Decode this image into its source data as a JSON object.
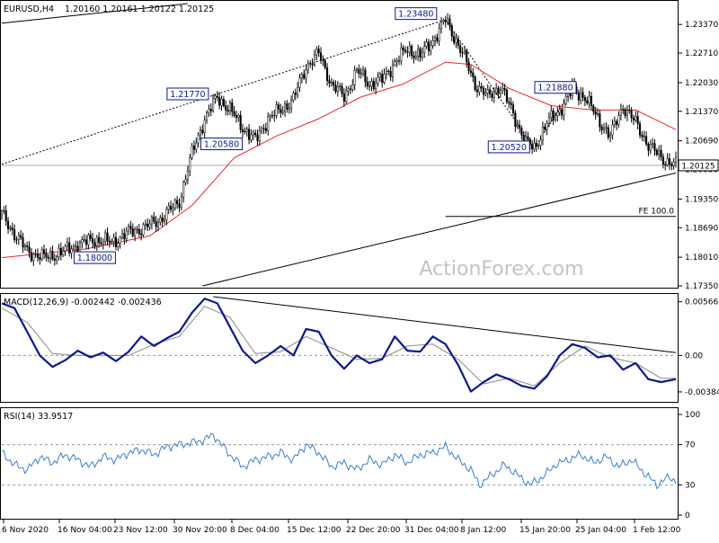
{
  "header": {
    "symbol": "EURUSD,H4",
    "ohlc": "1.20160 1.20161 1.20122 1.20125"
  },
  "watermark": "ActionForex.com",
  "colors": {
    "candle": "#000000",
    "ma": "#e8282b",
    "macd": "#0a1a8c",
    "signal": "#8a8a8a",
    "rsi": "#3a7fcf",
    "grid": "#9a9a9a",
    "border": "#000000"
  },
  "chart_data": [
    {
      "type": "candlestick",
      "panel": "price",
      "ylim": [
        1.1735,
        1.2385
      ],
      "y_ticks": [
        "1.23370",
        "1.22710",
        "1.22030",
        "1.21370",
        "1.20690",
        "1.20030",
        "1.19350",
        "1.18690",
        "1.18010",
        "1.17350"
      ],
      "x_ticks": [
        "6 Nov 2020",
        "16 Nov 04:00",
        "23 Nov 12:00",
        "30 Nov 20:00",
        "8 Dec 04:00",
        "15 Dec 12:00",
        "22 Dec 20:00",
        "31 Dec 04:00",
        "8 Jan 12:00",
        "15 Jan 20:00",
        "25 Jan 04:00",
        "1 Feb 12:00"
      ],
      "x_count": 320,
      "close_path": [
        [
          0,
          1.19
        ],
        [
          6,
          1.1855
        ],
        [
          12,
          1.1815
        ],
        [
          20,
          1.18
        ],
        [
          28,
          1.1812
        ],
        [
          36,
          1.183
        ],
        [
          44,
          1.1842
        ],
        [
          52,
          1.1835
        ],
        [
          60,
          1.1858
        ],
        [
          68,
          1.187
        ],
        [
          76,
          1.1892
        ],
        [
          84,
          1.193
        ],
        [
          90,
          1.204
        ],
        [
          96,
          1.212
        ],
        [
          102,
          1.217
        ],
        [
          108,
          1.214
        ],
        [
          114,
          1.21
        ],
        [
          120,
          1.207
        ],
        [
          126,
          1.212
        ],
        [
          132,
          1.214
        ],
        [
          138,
          1.2165
        ],
        [
          144,
          1.224
        ],
        [
          150,
          1.227
        ],
        [
          156,
          1.22
        ],
        [
          162,
          1.217
        ],
        [
          168,
          1.223
        ],
        [
          174,
          1.22
        ],
        [
          180,
          1.221
        ],
        [
          186,
          1.225
        ],
        [
          192,
          1.228
        ],
        [
          198,
          1.2265
        ],
        [
          204,
          1.23
        ],
        [
          210,
          1.2348
        ],
        [
          214,
          1.231
        ],
        [
          218,
          1.227
        ],
        [
          224,
          1.22
        ],
        [
          230,
          1.217
        ],
        [
          236,
          1.2195
        ],
        [
          242,
          1.213
        ],
        [
          248,
          1.2065
        ],
        [
          252,
          1.2052
        ],
        [
          258,
          1.211
        ],
        [
          264,
          1.214
        ],
        [
          270,
          1.2188
        ],
        [
          276,
          1.217
        ],
        [
          282,
          1.212
        ],
        [
          288,
          1.208
        ],
        [
          294,
          1.215
        ],
        [
          300,
          1.211
        ],
        [
          306,
          1.206
        ],
        [
          312,
          1.203
        ],
        [
          319,
          1.20125
        ]
      ],
      "moving_average": [
        [
          0,
          1.18
        ],
        [
          40,
          1.182
        ],
        [
          70,
          1.185
        ],
        [
          90,
          1.192
        ],
        [
          110,
          1.203
        ],
        [
          130,
          1.208
        ],
        [
          150,
          1.212
        ],
        [
          170,
          1.217
        ],
        [
          190,
          1.22
        ],
        [
          210,
          1.225
        ],
        [
          222,
          1.2245
        ],
        [
          240,
          1.219
        ],
        [
          260,
          1.215
        ],
        [
          280,
          1.214
        ],
        [
          300,
          1.214
        ],
        [
          319,
          1.2095
        ]
      ],
      "trendlines": [
        {
          "style": "solid",
          "points": [
            [
              0,
              1.234
            ],
            [
              88,
              1.2385
            ]
          ]
        },
        {
          "style": "dotted",
          "points": [
            [
              0,
              1.2015
            ],
            [
              210,
              1.2348
            ]
          ]
        },
        {
          "style": "dotted",
          "points": [
            [
              210,
              1.2348
            ],
            [
              252,
              1.2052
            ]
          ]
        },
        {
          "style": "dotted",
          "points": [
            [
              252,
              1.2052
            ],
            [
              270,
              1.2188
            ]
          ]
        },
        {
          "style": "solid",
          "points": [
            [
              95,
              1.1735
            ],
            [
              319,
              1.1995
            ]
          ]
        }
      ],
      "horizontal_lines": [
        {
          "y": 1.20125,
          "from": 0,
          "to": 319,
          "color": "#aaaaaa"
        },
        {
          "y": 1.1895,
          "from": 210,
          "to": 319,
          "color": "#000000",
          "label": "FE 100.0"
        }
      ],
      "annotations": [
        {
          "text": "1.23480",
          "x": 196,
          "y": 1.2362
        },
        {
          "text": "1.21770",
          "x": 88,
          "y": 1.2177
        },
        {
          "text": "1.20580",
          "x": 104,
          "y": 1.2062
        },
        {
          "text": "1.21880",
          "x": 262,
          "y": 1.2192
        },
        {
          "text": "1.20520",
          "x": 240,
          "y": 1.2055
        },
        {
          "text": "1.18000",
          "x": 44,
          "y": 1.18
        }
      ],
      "last_price_label": "1.20125",
      "last_price": 1.20125
    },
    {
      "type": "line",
      "panel": "macd",
      "title": "MACD(12,26,9) -0.002442 -0.002436",
      "ylim": [
        -0.0047,
        0.0062
      ],
      "y_ticks": [
        {
          "value": 0.005661,
          "label": "0.005661"
        },
        {
          "value": 0.0,
          "label": "0.00"
        },
        {
          "value": -0.00384,
          "label": "-0.00384"
        }
      ],
      "series": [
        {
          "role": "macd",
          "points": [
            [
              0,
              0.0055
            ],
            [
              6,
              0.005
            ],
            [
              12,
              0.0025
            ],
            [
              18,
              0.0
            ],
            [
              24,
              -0.0012
            ],
            [
              30,
              -0.0005
            ],
            [
              36,
              0.0005
            ],
            [
              42,
              -0.0002
            ],
            [
              48,
              0.0003
            ],
            [
              54,
              -0.0006
            ],
            [
              60,
              0.0004
            ],
            [
              66,
              0.002
            ],
            [
              72,
              0.001
            ],
            [
              78,
              0.0018
            ],
            [
              84,
              0.0025
            ],
            [
              90,
              0.0045
            ],
            [
              96,
              0.006
            ],
            [
              102,
              0.0055
            ],
            [
              108,
              0.003
            ],
            [
              114,
              0.0005
            ],
            [
              120,
              -0.0008
            ],
            [
              126,
              0.0
            ],
            [
              132,
              0.001
            ],
            [
              138,
              0.0
            ],
            [
              144,
              0.0028
            ],
            [
              150,
              0.0025
            ],
            [
              156,
              0.0
            ],
            [
              162,
              -0.0014
            ],
            [
              168,
              0.0
            ],
            [
              174,
              -0.0008
            ],
            [
              180,
              -0.0004
            ],
            [
              186,
              0.002
            ],
            [
              192,
              0.0005
            ],
            [
              198,
              0.0004
            ],
            [
              204,
              0.002
            ],
            [
              210,
              0.0012
            ],
            [
              216,
              -0.001
            ],
            [
              222,
              -0.0038
            ],
            [
              228,
              -0.0028
            ],
            [
              234,
              -0.002
            ],
            [
              240,
              -0.0025
            ],
            [
              246,
              -0.0032
            ],
            [
              252,
              -0.0035
            ],
            [
              258,
              -0.0022
            ],
            [
              264,
              0.0
            ],
            [
              270,
              0.0012
            ],
            [
              276,
              0.0008
            ],
            [
              282,
              -0.0002
            ],
            [
              288,
              0.0
            ],
            [
              294,
              -0.0015
            ],
            [
              300,
              -0.0008
            ],
            [
              306,
              -0.0025
            ],
            [
              312,
              -0.0028
            ],
            [
              319,
              -0.0025
            ]
          ]
        },
        {
          "role": "signal",
          "points": [
            [
              0,
              0.005
            ],
            [
              12,
              0.0035
            ],
            [
              24,
              0.0002
            ],
            [
              36,
              0.0
            ],
            [
              48,
              0.0
            ],
            [
              60,
              0.0
            ],
            [
              72,
              0.0012
            ],
            [
              84,
              0.002
            ],
            [
              96,
              0.0052
            ],
            [
              108,
              0.004
            ],
            [
              120,
              0.0002
            ],
            [
              132,
              0.0004
            ],
            [
              144,
              0.002
            ],
            [
              156,
              0.0008
            ],
            [
              168,
              -0.0004
            ],
            [
              180,
              -0.0003
            ],
            [
              192,
              0.001
            ],
            [
              204,
              0.0012
            ],
            [
              216,
              -0.0004
            ],
            [
              228,
              -0.003
            ],
            [
              240,
              -0.0024
            ],
            [
              252,
              -0.0032
            ],
            [
              264,
              -0.0008
            ],
            [
              276,
              0.001
            ],
            [
              288,
              -0.0002
            ],
            [
              300,
              -0.0008
            ],
            [
              312,
              -0.0024
            ],
            [
              319,
              -0.0024
            ]
          ]
        }
      ],
      "trendline": [
        [
          100,
          0.0062
        ],
        [
          319,
          0.0003
        ]
      ]
    },
    {
      "type": "line",
      "panel": "rsi",
      "title": "RSI(14) 33.9517",
      "ylim": [
        0,
        100
      ],
      "y_ticks": [
        {
          "value": 100,
          "label": "100"
        },
        {
          "value": 70,
          "label": "70"
        },
        {
          "value": 30,
          "label": "30"
        },
        {
          "value": 0,
          "label": "0"
        }
      ],
      "levels": [
        70,
        30
      ],
      "series": [
        {
          "role": "rsi",
          "points": [
            [
              0,
              62
            ],
            [
              6,
              50
            ],
            [
              12,
              45
            ],
            [
              18,
              58
            ],
            [
              24,
              52
            ],
            [
              30,
              60
            ],
            [
              36,
              55
            ],
            [
              42,
              48
            ],
            [
              48,
              58
            ],
            [
              54,
              55
            ],
            [
              60,
              62
            ],
            [
              66,
              65
            ],
            [
              72,
              60
            ],
            [
              78,
              68
            ],
            [
              84,
              70
            ],
            [
              90,
              72
            ],
            [
              96,
              75
            ],
            [
              100,
              80
            ],
            [
              104,
              70
            ],
            [
              108,
              60
            ],
            [
              114,
              48
            ],
            [
              120,
              55
            ],
            [
              126,
              58
            ],
            [
              132,
              62
            ],
            [
              138,
              55
            ],
            [
              144,
              70
            ],
            [
              150,
              62
            ],
            [
              156,
              48
            ],
            [
              162,
              52
            ],
            [
              168,
              45
            ],
            [
              174,
              55
            ],
            [
              180,
              50
            ],
            [
              186,
              60
            ],
            [
              192,
              52
            ],
            [
              198,
              60
            ],
            [
              204,
              62
            ],
            [
              210,
              68
            ],
            [
              216,
              55
            ],
            [
              222,
              45
            ],
            [
              226,
              30
            ],
            [
              232,
              40
            ],
            [
              238,
              50
            ],
            [
              244,
              40
            ],
            [
              250,
              30
            ],
            [
              256,
              38
            ],
            [
              262,
              50
            ],
            [
              268,
              55
            ],
            [
              274,
              60
            ],
            [
              280,
              52
            ],
            [
              286,
              58
            ],
            [
              292,
              48
            ],
            [
              298,
              55
            ],
            [
              304,
              42
            ],
            [
              310,
              30
            ],
            [
              316,
              38
            ],
            [
              319,
              34
            ]
          ]
        }
      ]
    }
  ]
}
